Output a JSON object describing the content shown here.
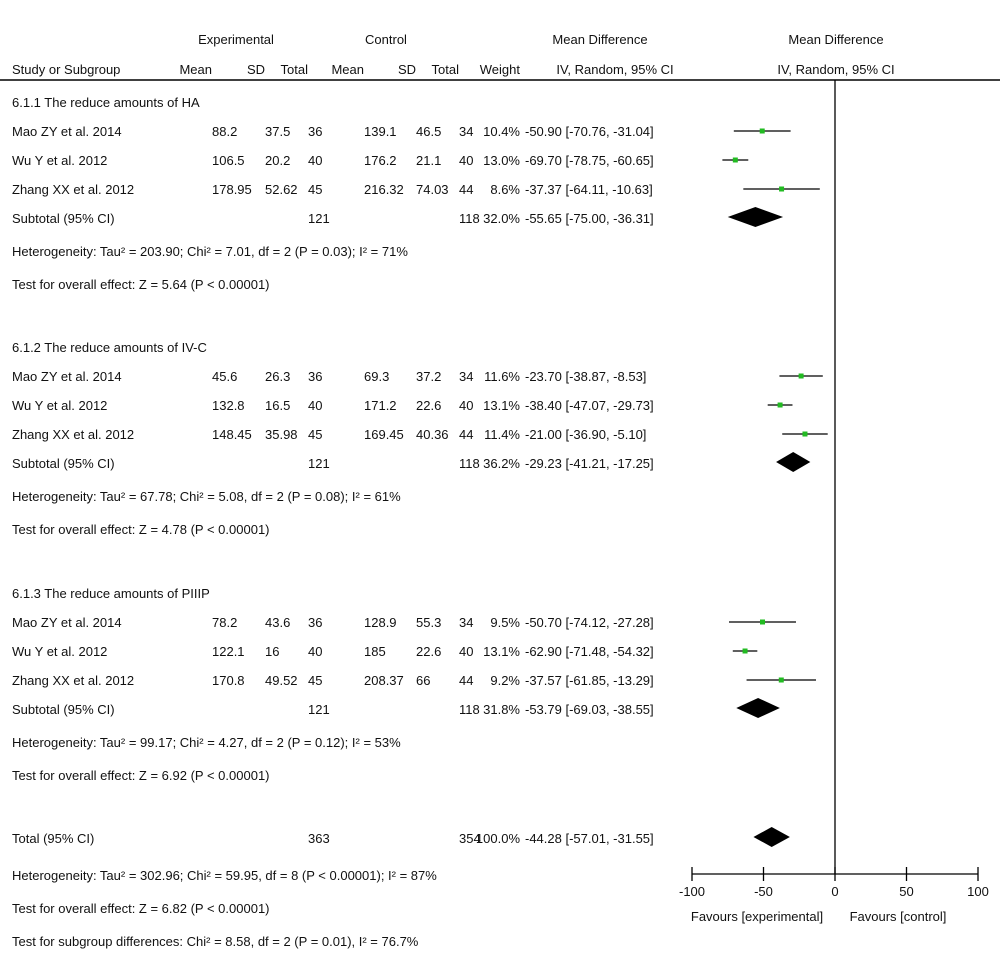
{
  "headers": {
    "group1": "Experimental",
    "group2": "Control",
    "effect_col": "Mean Difference",
    "effect_sub": "IV, Random, 95% CI",
    "plot_title": "Mean Difference",
    "plot_sub": "IV, Random, 95% CI",
    "study": "Study or Subgroup",
    "mean1": "Mean",
    "sd1": "SD",
    "total1": "Total",
    "mean2": "Mean",
    "sd2": "SD",
    "total2": "Total",
    "weight": "Weight"
  },
  "groups": [
    {
      "title": "6.1.1 The reduce amounts of HA",
      "studies": [
        {
          "name": "Mao ZY et al. 2014",
          "mean1": "88.2",
          "sd1": "37.5",
          "n1": "36",
          "mean2": "139.1",
          "sd2": "46.5",
          "n2": "34",
          "weight": "10.4%",
          "ci": "-50.90 [-70.76, -31.04]"
        },
        {
          "name": "Wu Y et al. 2012",
          "mean1": "106.5",
          "sd1": "20.2",
          "n1": "40",
          "mean2": "176.2",
          "sd2": "21.1",
          "n2": "40",
          "weight": "13.0%",
          "ci": "-69.70 [-78.75, -60.65]"
        },
        {
          "name": "Zhang XX et al. 2012",
          "mean1": "178.95",
          "sd1": "52.62",
          "n1": "45",
          "mean2": "216.32",
          "sd2": "74.03",
          "n2": "44",
          "weight": "8.6%",
          "ci": "-37.37 [-64.11, -10.63]"
        }
      ],
      "subtotal": {
        "label": "Subtotal (95% CI)",
        "n1": "121",
        "n2": "118",
        "weight": "32.0%",
        "ci": "-55.65 [-75.00, -36.31]"
      },
      "heterogeneity": "Heterogeneity: Tau² = 203.90; Chi² = 7.01, df = 2 (P = 0.03); I² = 71%",
      "overall": "Test for overall effect: Z = 5.64 (P < 0.00001)"
    },
    {
      "title": "6.1.2 The reduce amounts of IV-C",
      "studies": [
        {
          "name": "Mao ZY et al. 2014",
          "mean1": "45.6",
          "sd1": "26.3",
          "n1": "36",
          "mean2": "69.3",
          "sd2": "37.2",
          "n2": "34",
          "weight": "11.6%",
          "ci": "-23.70 [-38.87, -8.53]"
        },
        {
          "name": "Wu Y et al. 2012",
          "mean1": "132.8",
          "sd1": "16.5",
          "n1": "40",
          "mean2": "171.2",
          "sd2": "22.6",
          "n2": "40",
          "weight": "13.1%",
          "ci": "-38.40 [-47.07, -29.73]"
        },
        {
          "name": "Zhang XX et al. 2012",
          "mean1": "148.45",
          "sd1": "35.98",
          "n1": "45",
          "mean2": "169.45",
          "sd2": "40.36",
          "n2": "44",
          "weight": "11.4%",
          "ci": "-21.00 [-36.90, -5.10]"
        }
      ],
      "subtotal": {
        "label": "Subtotal (95% CI)",
        "n1": "121",
        "n2": "118",
        "weight": "36.2%",
        "ci": "-29.23 [-41.21, -17.25]"
      },
      "heterogeneity": "Heterogeneity: Tau² = 67.78; Chi² = 5.08, df = 2 (P = 0.08); I² = 61%",
      "overall": "Test for overall effect: Z = 4.78 (P < 0.00001)"
    },
    {
      "title": "6.1.3 The reduce amounts of PIIIP",
      "studies": [
        {
          "name": "Mao ZY et al. 2014",
          "mean1": "78.2",
          "sd1": "43.6",
          "n1": "36",
          "mean2": "128.9",
          "sd2": "55.3",
          "n2": "34",
          "weight": "9.5%",
          "ci": "-50.70 [-74.12, -27.28]"
        },
        {
          "name": "Wu Y et al. 2012",
          "mean1": "122.1",
          "sd1": "16",
          "n1": "40",
          "mean2": "185",
          "sd2": "22.6",
          "n2": "40",
          "weight": "13.1%",
          "ci": "-62.90 [-71.48, -54.32]"
        },
        {
          "name": "Zhang XX et al. 2012",
          "mean1": "170.8",
          "sd1": "49.52",
          "n1": "45",
          "mean2": "208.37",
          "sd2": "66",
          "n2": "44",
          "weight": "9.2%",
          "ci": "-37.57 [-61.85, -13.29]"
        }
      ],
      "subtotal": {
        "label": "Subtotal (95% CI)",
        "n1": "121",
        "n2": "118",
        "weight": "31.8%",
        "ci": "-53.79 [-69.03, -38.55]"
      },
      "heterogeneity": "Heterogeneity: Tau² = 99.17; Chi² = 4.27, df = 2 (P = 0.12); I² = 53%",
      "overall": "Test for overall effect: Z = 6.92 (P < 0.00001)"
    }
  ],
  "total": {
    "label": "Total (95% CI)",
    "n1": "363",
    "n2": "354",
    "weight": "100.0%",
    "ci": "-44.28 [-57.01, -31.55]",
    "heterogeneity": "Heterogeneity: Tau² = 302.96; Chi² = 59.95, df = 8 (P < 0.00001); I² = 87%",
    "overall": "Test for overall effect: Z = 6.82 (P < 0.00001)",
    "subgroup": "Test for subgroup differences: Chi² = 8.58, df = 2 (P = 0.01), I² = 76.7%"
  },
  "axis_footer": {
    "left": "Favours [experimental]",
    "right": "Favours [control]"
  },
  "colors": {
    "point": "#22bb22",
    "diamond": "#000000",
    "line": "#000000"
  },
  "chart_data": {
    "type": "forest",
    "xlim": [
      -100,
      100
    ],
    "ticks": [
      -100,
      -50,
      0,
      50,
      100
    ],
    "xlabel_left": "Favours [experimental]",
    "xlabel_right": "Favours [control]",
    "studies": [
      {
        "group": 0,
        "name": "Mao ZY et al. 2014",
        "md": -50.9,
        "lo": -70.76,
        "hi": -31.04,
        "weight": 10.4
      },
      {
        "group": 0,
        "name": "Wu Y et al. 2012",
        "md": -69.7,
        "lo": -78.75,
        "hi": -60.65,
        "weight": 13.0
      },
      {
        "group": 0,
        "name": "Zhang XX et al. 2012",
        "md": -37.37,
        "lo": -64.11,
        "hi": -10.63,
        "weight": 8.6
      },
      {
        "group": 1,
        "name": "Mao ZY et al. 2014",
        "md": -23.7,
        "lo": -38.87,
        "hi": -8.53,
        "weight": 11.6
      },
      {
        "group": 1,
        "name": "Wu Y et al. 2012",
        "md": -38.4,
        "lo": -47.07,
        "hi": -29.73,
        "weight": 13.1
      },
      {
        "group": 1,
        "name": "Zhang XX et al. 2012",
        "md": -21.0,
        "lo": -36.9,
        "hi": -5.1,
        "weight": 11.4
      },
      {
        "group": 2,
        "name": "Mao ZY et al. 2014",
        "md": -50.7,
        "lo": -74.12,
        "hi": -27.28,
        "weight": 9.5
      },
      {
        "group": 2,
        "name": "Wu Y et al. 2012",
        "md": -62.9,
        "lo": -71.48,
        "hi": -54.32,
        "weight": 13.1
      },
      {
        "group": 2,
        "name": "Zhang XX et al. 2012",
        "md": -37.57,
        "lo": -61.85,
        "hi": -13.29,
        "weight": 9.2
      }
    ],
    "subtotals": [
      {
        "group": 0,
        "md": -55.65,
        "lo": -75.0,
        "hi": -36.31
      },
      {
        "group": 1,
        "md": -29.23,
        "lo": -41.21,
        "hi": -17.25
      },
      {
        "group": 2,
        "md": -53.79,
        "lo": -69.03,
        "hi": -38.55
      }
    ],
    "total": {
      "md": -44.28,
      "lo": -57.01,
      "hi": -31.55
    }
  }
}
